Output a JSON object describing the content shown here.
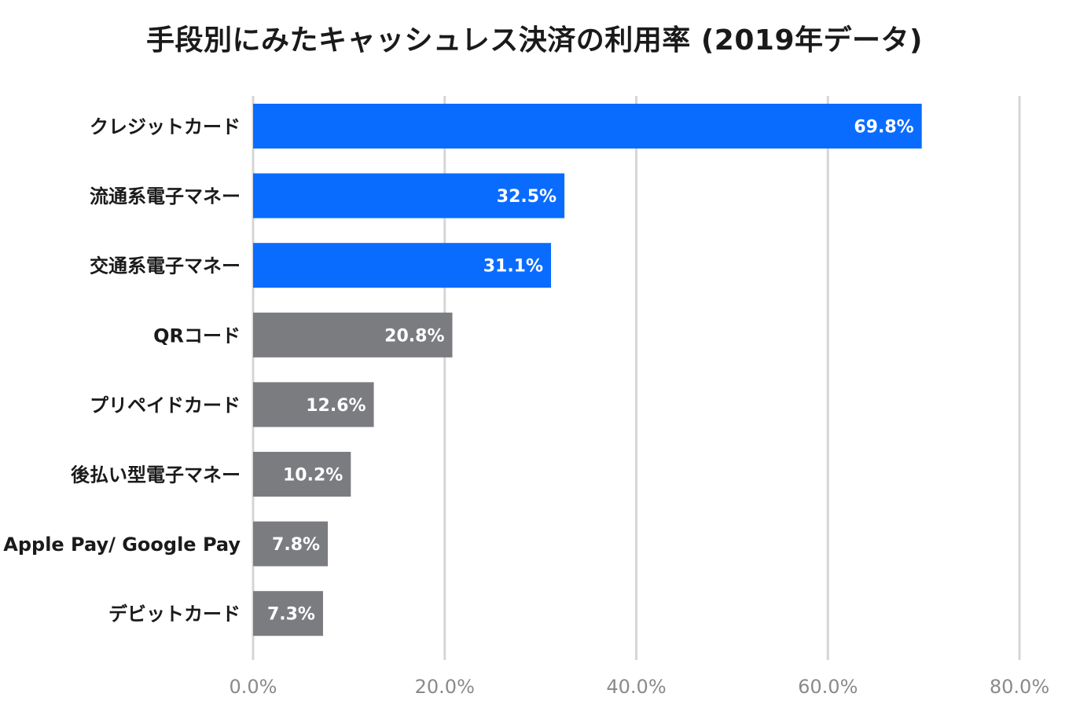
{
  "chart_data": {
    "type": "bar",
    "orientation": "horizontal",
    "title": "手段別にみたキャッシュレス決済の利用率 (2019年データ)",
    "xlabel": "",
    "ylabel": "",
    "categories": [
      "クレジットカード",
      "流通系電子マネー",
      "交通系電子マネー",
      "QRコード",
      "プリペイドカード",
      "後払い型電子マネー",
      "Apple Pay/ Google Pay",
      "デビットカード"
    ],
    "values": [
      69.8,
      32.5,
      31.1,
      20.8,
      12.6,
      10.2,
      7.8,
      7.3
    ],
    "value_labels": [
      "69.8%",
      "32.5%",
      "31.1%",
      "20.8%",
      "12.6%",
      "10.2%",
      "7.8%",
      "7.3%"
    ],
    "bar_colors": [
      "#0a6cff",
      "#0a6cff",
      "#0a6cff",
      "#7a7c80",
      "#7a7c80",
      "#7a7c80",
      "#7a7c80",
      "#7a7c80"
    ],
    "xlim": [
      0,
      80
    ],
    "xticks": [
      0,
      20,
      40,
      60,
      80
    ],
    "xtick_labels": [
      "0.0%",
      "20.0%",
      "40.0%",
      "60.0%",
      "80.0%"
    ],
    "grid": true,
    "legend": "none"
  }
}
